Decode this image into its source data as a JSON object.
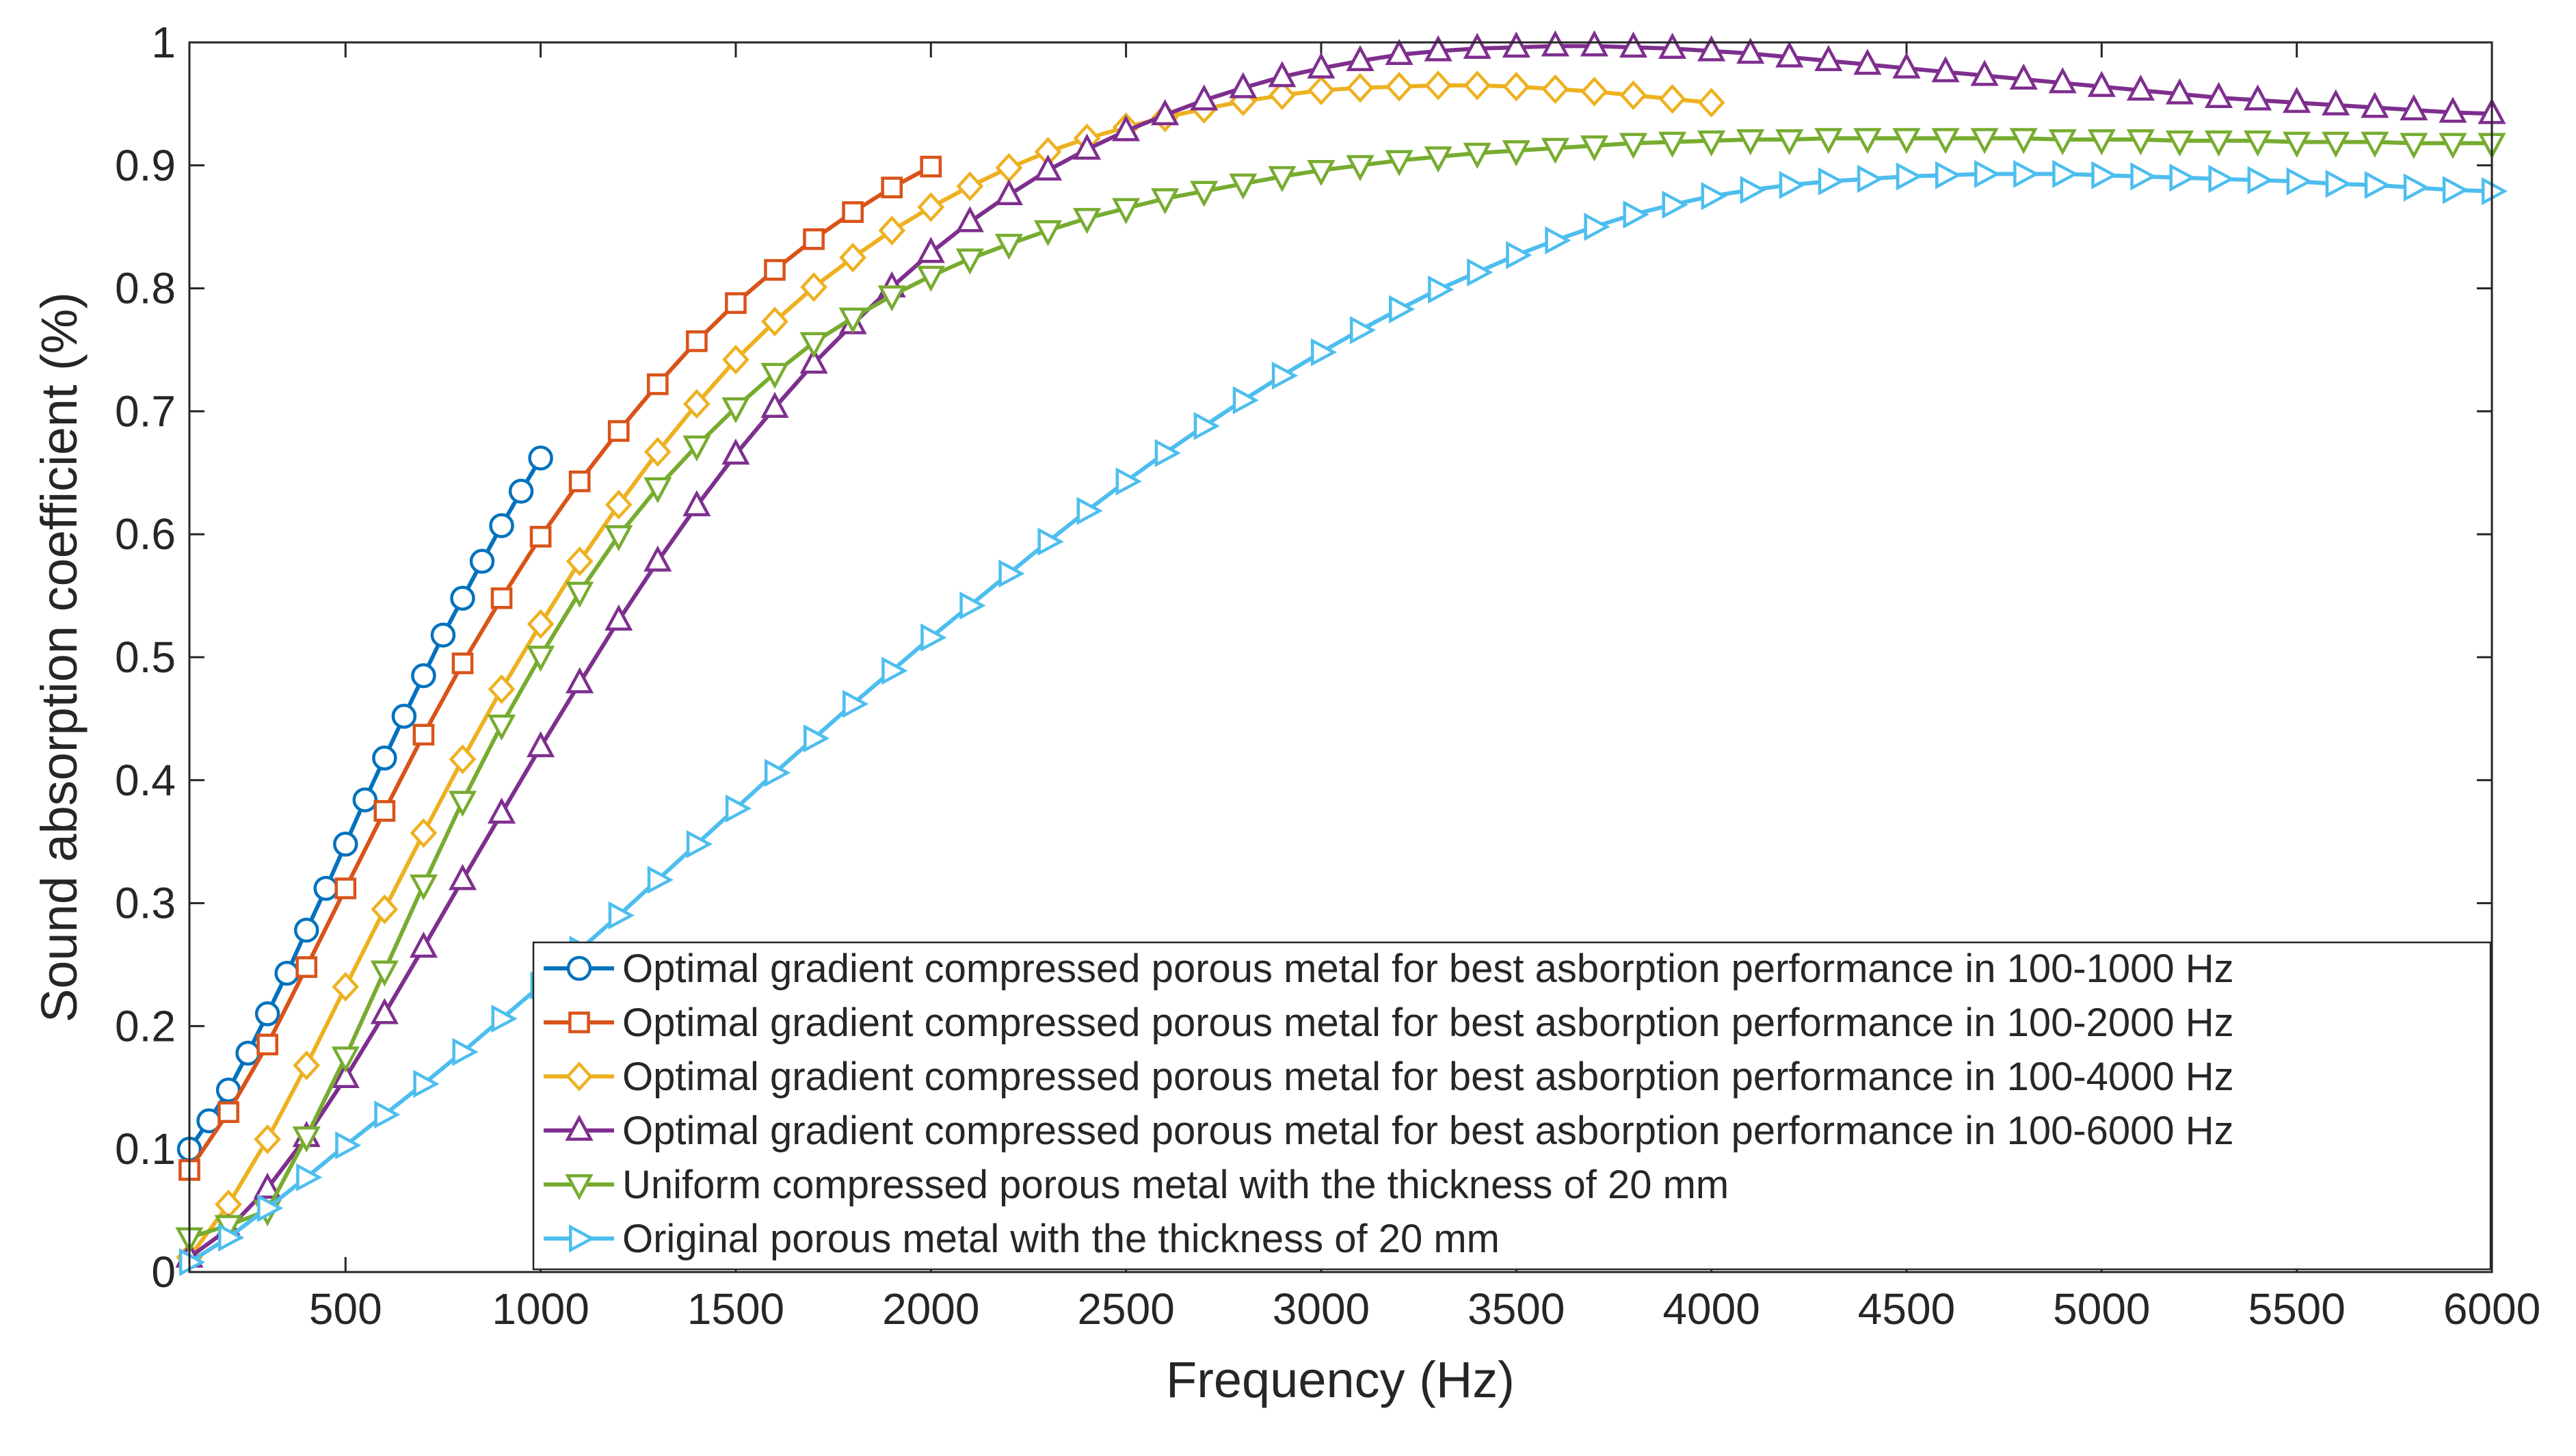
{
  "chart_data": {
    "type": "line",
    "xlabel": "Frequency (Hz)",
    "ylabel": "Sound absorption coefficient (%)",
    "xlim": [
      100,
      6000
    ],
    "ylim": [
      0,
      1
    ],
    "xticks": [
      500,
      1000,
      1500,
      2000,
      2500,
      3000,
      3500,
      4000,
      4500,
      5000,
      5500,
      6000
    ],
    "yticks": [
      0,
      0.1,
      0.2,
      0.3,
      0.4,
      0.5,
      0.6,
      0.7,
      0.8,
      0.9,
      1
    ],
    "xtick_labels": [
      "500",
      "1000",
      "1500",
      "2000",
      "2500",
      "3000",
      "3500",
      "4000",
      "4500",
      "5000",
      "5500",
      "6000"
    ],
    "ytick_labels": [
      "0",
      "0.1",
      "0.2",
      "0.3",
      "0.4",
      "0.5",
      "0.6",
      "0.7",
      "0.8",
      "0.9",
      "1"
    ],
    "grid": false,
    "legend_position": "bottom-right",
    "series": [
      {
        "name": "Optimal gradient compressed porous metal for best asborption performance in 100-1000 Hz",
        "color": "#0072BD",
        "marker": "circle",
        "x": [
          100,
          150,
          200,
          250,
          300,
          350,
          400,
          450,
          500,
          550,
          600,
          650,
          700,
          750,
          800,
          850,
          900,
          950,
          1000
        ],
        "y": [
          0.1,
          0.123,
          0.148,
          0.178,
          0.21,
          0.243,
          0.278,
          0.312,
          0.348,
          0.384,
          0.418,
          0.452,
          0.485,
          0.518,
          0.548,
          0.578,
          0.607,
          0.635,
          0.662
        ]
      },
      {
        "name": "Optimal gradient compressed porous metal for best asborption performance in 100-2000 Hz",
        "color": "#D95319",
        "marker": "square",
        "x": [
          100,
          200,
          300,
          400,
          500,
          600,
          700,
          800,
          900,
          1000,
          1100,
          1200,
          1300,
          1400,
          1500,
          1600,
          1700,
          1800,
          1900,
          2000
        ],
        "y": [
          0.083,
          0.13,
          0.185,
          0.248,
          0.312,
          0.375,
          0.437,
          0.495,
          0.548,
          0.598,
          0.643,
          0.684,
          0.722,
          0.757,
          0.788,
          0.815,
          0.84,
          0.862,
          0.882,
          0.899
        ]
      },
      {
        "name": "Optimal gradient compressed porous metal for best asborption performance in 100-4000 Hz",
        "color": "#EDB120",
        "marker": "diamond",
        "x": [
          100,
          200,
          300,
          400,
          500,
          600,
          700,
          800,
          900,
          1000,
          1100,
          1200,
          1300,
          1400,
          1500,
          1600,
          1700,
          1800,
          1900,
          2000,
          2100,
          2200,
          2300,
          2400,
          2500,
          2600,
          2700,
          2800,
          2900,
          3000,
          3100,
          3200,
          3300,
          3400,
          3500,
          3600,
          3700,
          3800,
          3900,
          4000
        ],
        "y": [
          0.012,
          0.055,
          0.108,
          0.168,
          0.232,
          0.295,
          0.357,
          0.417,
          0.474,
          0.527,
          0.578,
          0.624,
          0.667,
          0.706,
          0.742,
          0.773,
          0.801,
          0.825,
          0.847,
          0.866,
          0.883,
          0.898,
          0.911,
          0.922,
          0.931,
          0.939,
          0.946,
          0.952,
          0.957,
          0.961,
          0.963,
          0.964,
          0.965,
          0.965,
          0.964,
          0.962,
          0.96,
          0.957,
          0.954,
          0.951
        ]
      },
      {
        "name": "Optimal gradient compressed porous metal for best asborption performance in 100-6000 Hz",
        "color": "#7E2F8E",
        "marker": "triangle-up",
        "x": [
          100,
          200,
          300,
          400,
          500,
          600,
          700,
          800,
          900,
          1000,
          1100,
          1200,
          1300,
          1400,
          1500,
          1600,
          1700,
          1800,
          1900,
          2000,
          2100,
          2200,
          2300,
          2400,
          2500,
          2600,
          2700,
          2800,
          2900,
          3000,
          3100,
          3200,
          3300,
          3400,
          3500,
          3600,
          3700,
          3800,
          3900,
          4000,
          4100,
          4200,
          4300,
          4400,
          4500,
          4600,
          4700,
          4800,
          4900,
          5000,
          5100,
          5200,
          5300,
          5400,
          5500,
          5600,
          5700,
          5800,
          5900,
          6000
        ],
        "y": [
          0.012,
          0.035,
          0.068,
          0.11,
          0.158,
          0.21,
          0.264,
          0.319,
          0.373,
          0.427,
          0.479,
          0.53,
          0.578,
          0.623,
          0.665,
          0.703,
          0.739,
          0.771,
          0.801,
          0.829,
          0.854,
          0.876,
          0.896,
          0.913,
          0.928,
          0.941,
          0.953,
          0.963,
          0.972,
          0.979,
          0.985,
          0.99,
          0.993,
          0.995,
          0.996,
          0.997,
          0.997,
          0.996,
          0.995,
          0.993,
          0.991,
          0.988,
          0.985,
          0.982,
          0.979,
          0.976,
          0.973,
          0.97,
          0.967,
          0.964,
          0.961,
          0.958,
          0.955,
          0.953,
          0.951,
          0.949,
          0.947,
          0.945,
          0.943,
          0.942
        ]
      },
      {
        "name": "Uniform compressed porous metal with the thickness of 20 mm",
        "color": "#77AC30",
        "marker": "triangle-down",
        "x": [
          100,
          200,
          300,
          400,
          500,
          600,
          700,
          800,
          900,
          1000,
          1100,
          1200,
          1300,
          1400,
          1500,
          1600,
          1700,
          1800,
          1900,
          2000,
          2100,
          2200,
          2300,
          2400,
          2500,
          2600,
          2700,
          2800,
          2900,
          3000,
          3100,
          3200,
          3300,
          3400,
          3500,
          3600,
          3700,
          3800,
          3900,
          4000,
          4100,
          4200,
          4300,
          4400,
          4500,
          4600,
          4700,
          4800,
          4900,
          5000,
          5100,
          5200,
          5300,
          5400,
          5500,
          5600,
          5700,
          5800,
          5900,
          6000
        ],
        "y": [
          0.028,
          0.038,
          0.05,
          0.11,
          0.175,
          0.245,
          0.315,
          0.383,
          0.445,
          0.501,
          0.553,
          0.599,
          0.638,
          0.672,
          0.703,
          0.731,
          0.756,
          0.776,
          0.794,
          0.81,
          0.824,
          0.836,
          0.847,
          0.857,
          0.865,
          0.873,
          0.879,
          0.885,
          0.891,
          0.896,
          0.9,
          0.904,
          0.907,
          0.91,
          0.912,
          0.914,
          0.916,
          0.918,
          0.919,
          0.92,
          0.921,
          0.921,
          0.922,
          0.922,
          0.922,
          0.922,
          0.922,
          0.922,
          0.921,
          0.921,
          0.921,
          0.92,
          0.92,
          0.92,
          0.919,
          0.919,
          0.919,
          0.918,
          0.918,
          0.918
        ]
      },
      {
        "name": "Original porous metal with the thickness of 20 mm",
        "color": "#4DBEEE",
        "marker": "triangle-right",
        "x": [
          100,
          200,
          300,
          400,
          500,
          600,
          700,
          800,
          900,
          1000,
          1100,
          1200,
          1300,
          1400,
          1500,
          1600,
          1700,
          1800,
          1900,
          2000,
          2100,
          2200,
          2300,
          2400,
          2500,
          2600,
          2700,
          2800,
          2900,
          3000,
          3100,
          3200,
          3300,
          3400,
          3500,
          3600,
          3700,
          3800,
          3900,
          4000,
          4100,
          4200,
          4300,
          4400,
          4500,
          4600,
          4700,
          4800,
          4900,
          5000,
          5100,
          5200,
          5300,
          5400,
          5500,
          5600,
          5700,
          5800,
          5900,
          6000
        ],
        "y": [
          0.008,
          0.028,
          0.052,
          0.077,
          0.103,
          0.128,
          0.153,
          0.179,
          0.206,
          0.233,
          0.262,
          0.29,
          0.319,
          0.348,
          0.377,
          0.406,
          0.434,
          0.462,
          0.489,
          0.516,
          0.542,
          0.568,
          0.594,
          0.619,
          0.643,
          0.666,
          0.688,
          0.709,
          0.729,
          0.748,
          0.766,
          0.783,
          0.799,
          0.813,
          0.827,
          0.839,
          0.85,
          0.86,
          0.868,
          0.875,
          0.88,
          0.884,
          0.887,
          0.889,
          0.891,
          0.892,
          0.893,
          0.893,
          0.893,
          0.892,
          0.891,
          0.89,
          0.889,
          0.888,
          0.887,
          0.885,
          0.884,
          0.882,
          0.88,
          0.879
        ]
      }
    ]
  }
}
